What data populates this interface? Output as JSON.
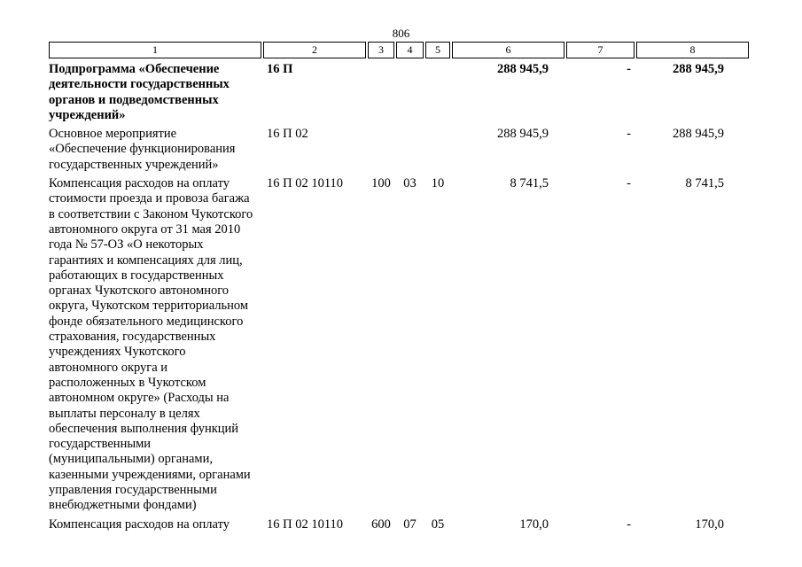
{
  "page": {
    "number": "806"
  },
  "table": {
    "header": [
      "1",
      "2",
      "3",
      "4",
      "5",
      "6",
      "7",
      "8"
    ],
    "rows": [
      {
        "c1": "Подпрограмма «Обеспечение деятельности государственных органов и подведомственных учреждений»",
        "c2": "16 П",
        "c3": "",
        "c4": "",
        "c5": "",
        "c6": "288 945,9",
        "c7": "-",
        "c8": "288 945,9"
      },
      {
        "c1": "Основное мероприятие «Обеспечение функционирования государственных учреждений»",
        "c2": "16 П 02",
        "c3": "",
        "c4": "",
        "c5": "",
        "c6": "288 945,9",
        "c7": "-",
        "c8": "288 945,9"
      },
      {
        "c1": "Компенсация расходов на оплату стоимости проезда и провоза багажа в соответствии с Законом Чукотского автономного округа от 31 мая 2010 года № 57-ОЗ «О некоторых гарантиях и компенсациях для лиц, работающих в государственных органах Чукотского автономного округа, Чукотском территориальном фонде обязательного медицинского страхования, государственных учреждениях Чукотского автономного округа и расположенных в Чукотском автономном округе» (Расходы на выплаты персоналу в целях обеспечения выполнения функций государственными (муниципальными) органами, казенными учреждениями, органами управления государственными внебюджетными фондами)",
        "c2": "16 П 02 10110",
        "c3": "100",
        "c4": "03",
        "c5": "10",
        "c6": "8 741,5",
        "c7": "-",
        "c8": "8 741,5"
      },
      {
        "c1": "Компенсация расходов на оплату",
        "c2": "16 П 02 10110",
        "c3": "600",
        "c4": "07",
        "c5": "05",
        "c6": "170,0",
        "c7": "-",
        "c8": "170,0"
      }
    ]
  }
}
